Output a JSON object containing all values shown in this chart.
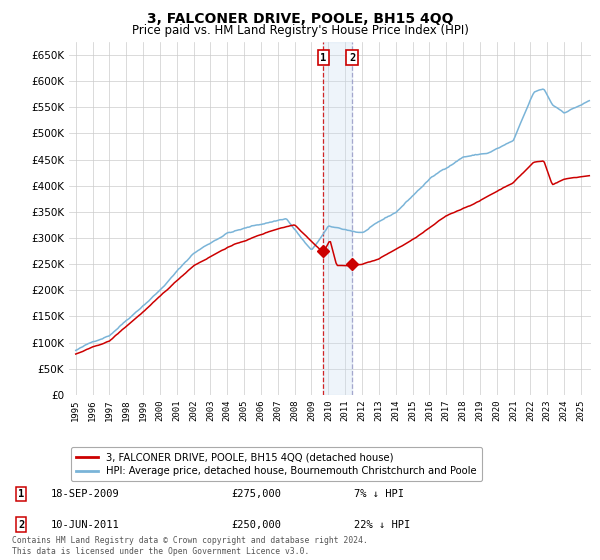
{
  "title": "3, FALCONER DRIVE, POOLE, BH15 4QQ",
  "subtitle": "Price paid vs. HM Land Registry's House Price Index (HPI)",
  "legend_line1": "3, FALCONER DRIVE, POOLE, BH15 4QQ (detached house)",
  "legend_line2": "HPI: Average price, detached house, Bournemouth Christchurch and Poole",
  "transaction1_date": "18-SEP-2009",
  "transaction1_price": 275000,
  "transaction1_label": "7% ↓ HPI",
  "transaction2_date": "10-JUN-2011",
  "transaction2_price": 250000,
  "transaction2_label": "22% ↓ HPI",
  "hpi_color": "#7ab4d8",
  "price_color": "#cc0000",
  "marker_color": "#cc0000",
  "vline1_color": "#cc0000",
  "vline2_color": "#8888bb",
  "shade_color": "#c8dcf0",
  "grid_color": "#cccccc",
  "bg_color": "#ffffff",
  "footer": "Contains HM Land Registry data © Crown copyright and database right 2024.\nThis data is licensed under the Open Government Licence v3.0.",
  "ylim": [
    0,
    675000
  ],
  "yticks": [
    0,
    50000,
    100000,
    150000,
    200000,
    250000,
    300000,
    350000,
    400000,
    450000,
    500000,
    550000,
    600000,
    650000
  ],
  "title_fontsize": 10,
  "subtitle_fontsize": 8.5,
  "t1": 2009.708,
  "t2": 2011.417
}
